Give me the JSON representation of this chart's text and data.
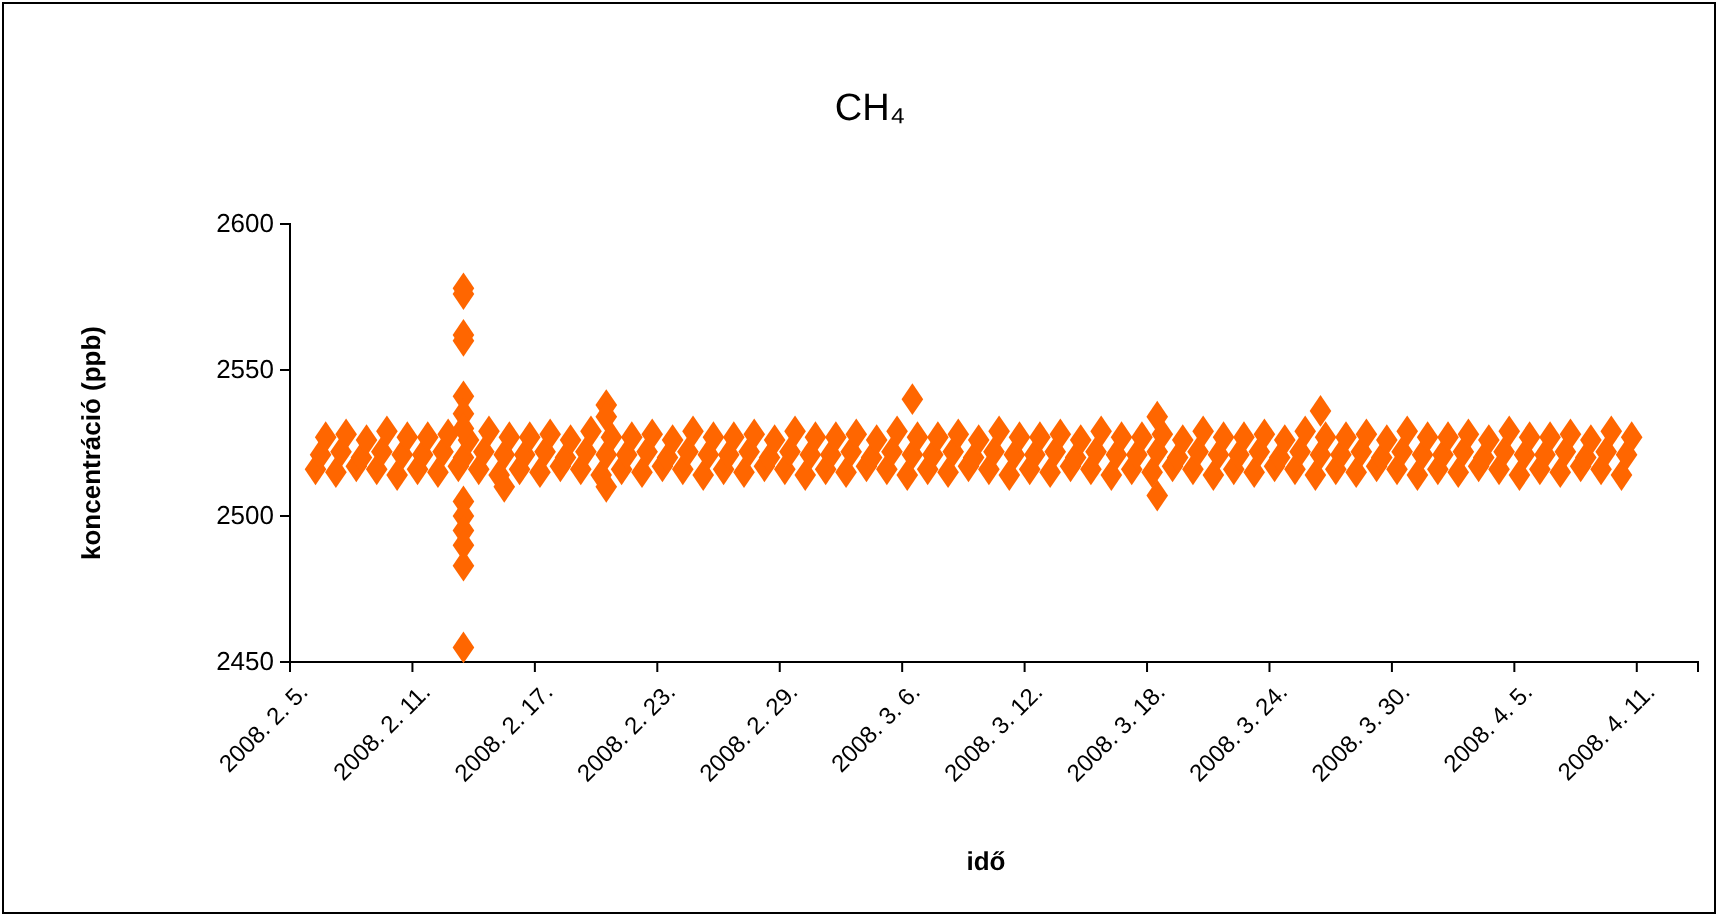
{
  "chart_data": {
    "type": "scatter",
    "title": "CH₄",
    "xlabel": "idő",
    "ylabel": "koncentráció (ppb)",
    "marker": "diamond",
    "xlim": [
      "2008-02-05",
      "2008-04-14"
    ],
    "xticks": [
      {
        "value": "2008-02-05",
        "label": "2008. 2. 5."
      },
      {
        "value": "2008-02-11",
        "label": "2008. 2. 11."
      },
      {
        "value": "2008-02-17",
        "label": "2008. 2. 17."
      },
      {
        "value": "2008-02-23",
        "label": "2008. 2. 23."
      },
      {
        "value": "2008-02-29",
        "label": "2008. 2. 29."
      },
      {
        "value": "2008-03-06",
        "label": "2008. 3. 6."
      },
      {
        "value": "2008-03-12",
        "label": "2008. 3. 12."
      },
      {
        "value": "2008-03-18",
        "label": "2008. 3. 18."
      },
      {
        "value": "2008-03-24",
        "label": "2008. 3. 24."
      },
      {
        "value": "2008-03-30",
        "label": "2008. 3. 30."
      },
      {
        "value": "2008-04-05",
        "label": "2008. 4. 5."
      },
      {
        "value": "2008-04-11",
        "label": "2008. 4. 11."
      }
    ],
    "ylim": [
      2450,
      2600
    ],
    "yticks": [
      2450,
      2500,
      2550,
      2600
    ],
    "series": [
      {
        "color": "#ff6600",
        "x": [
          "2008-02-06T06:00",
          "2008-02-06T12:00",
          "2008-02-06T18:00",
          "2008-02-07T06:00",
          "2008-02-07T12:00",
          "2008-02-07T18:00",
          "2008-02-08T06:00",
          "2008-02-08T12:00",
          "2008-02-08T18:00",
          "2008-02-09T06:00",
          "2008-02-09T12:00",
          "2008-02-09T18:00",
          "2008-02-10T06:00",
          "2008-02-10T12:00",
          "2008-02-10T18:00",
          "2008-02-11T06:00",
          "2008-02-11T12:00",
          "2008-02-11T18:00",
          "2008-02-12T06:00",
          "2008-02-12T12:00",
          "2008-02-12T18:00",
          "2008-02-13T06:00",
          "2008-02-13T12:00",
          "2008-02-13T18:00",
          "2008-02-14T06:00",
          "2008-02-14T12:00",
          "2008-02-14T18:00",
          "2008-02-15T06:00",
          "2008-02-15T12:00",
          "2008-02-15T18:00",
          "2008-02-16T06:00",
          "2008-02-16T12:00",
          "2008-02-16T18:00",
          "2008-02-17T06:00",
          "2008-02-17T12:00",
          "2008-02-17T18:00",
          "2008-02-18T06:00",
          "2008-02-18T12:00",
          "2008-02-18T18:00",
          "2008-02-19T06:00",
          "2008-02-19T12:00",
          "2008-02-19T18:00",
          "2008-02-20T06:00",
          "2008-02-20T12:00",
          "2008-02-20T18:00",
          "2008-02-21T06:00",
          "2008-02-21T12:00",
          "2008-02-21T18:00",
          "2008-02-22T06:00",
          "2008-02-22T12:00",
          "2008-02-22T18:00",
          "2008-02-23T06:00",
          "2008-02-23T12:00",
          "2008-02-23T18:00",
          "2008-02-24T06:00",
          "2008-02-24T12:00",
          "2008-02-24T18:00",
          "2008-02-25T06:00",
          "2008-02-25T12:00",
          "2008-02-25T18:00",
          "2008-02-26T06:00",
          "2008-02-26T12:00",
          "2008-02-26T18:00",
          "2008-02-27T06:00",
          "2008-02-27T12:00",
          "2008-02-27T18:00",
          "2008-02-28T06:00",
          "2008-02-28T12:00",
          "2008-02-28T18:00",
          "2008-02-29T06:00",
          "2008-02-29T12:00",
          "2008-02-29T18:00",
          "2008-03-01T06:00",
          "2008-03-01T12:00",
          "2008-03-01T18:00",
          "2008-03-02T06:00",
          "2008-03-02T12:00",
          "2008-03-02T18:00",
          "2008-03-03T06:00",
          "2008-03-03T12:00",
          "2008-03-03T18:00",
          "2008-03-04T06:00",
          "2008-03-04T12:00",
          "2008-03-04T18:00",
          "2008-03-05T06:00",
          "2008-03-05T12:00",
          "2008-03-05T18:00",
          "2008-03-06T06:00",
          "2008-03-06T12:00",
          "2008-03-06T18:00",
          "2008-03-07T06:00",
          "2008-03-07T12:00",
          "2008-03-07T18:00",
          "2008-03-08T06:00",
          "2008-03-08T12:00",
          "2008-03-08T18:00",
          "2008-03-09T06:00",
          "2008-03-09T12:00",
          "2008-03-09T18:00",
          "2008-03-10T06:00",
          "2008-03-10T12:00",
          "2008-03-10T18:00",
          "2008-03-11T06:00",
          "2008-03-11T12:00",
          "2008-03-11T18:00",
          "2008-03-12T06:00",
          "2008-03-12T12:00",
          "2008-03-12T18:00",
          "2008-03-13T06:00",
          "2008-03-13T12:00",
          "2008-03-13T18:00",
          "2008-03-14T06:00",
          "2008-03-14T12:00",
          "2008-03-14T18:00",
          "2008-03-15T06:00",
          "2008-03-15T12:00",
          "2008-03-15T18:00",
          "2008-03-16T06:00",
          "2008-03-16T12:00",
          "2008-03-16T18:00",
          "2008-03-17T06:00",
          "2008-03-17T12:00",
          "2008-03-17T18:00",
          "2008-03-18T06:00",
          "2008-03-18T12:00",
          "2008-03-18T18:00",
          "2008-03-19T06:00",
          "2008-03-19T12:00",
          "2008-03-19T18:00",
          "2008-03-20T06:00",
          "2008-03-20T12:00",
          "2008-03-20T18:00",
          "2008-03-21T06:00",
          "2008-03-21T12:00",
          "2008-03-21T18:00",
          "2008-03-22T06:00",
          "2008-03-22T12:00",
          "2008-03-22T18:00",
          "2008-03-23T06:00",
          "2008-03-23T12:00",
          "2008-03-23T18:00",
          "2008-03-24T06:00",
          "2008-03-24T12:00",
          "2008-03-24T18:00",
          "2008-03-25T06:00",
          "2008-03-25T12:00",
          "2008-03-25T18:00",
          "2008-03-26T06:00",
          "2008-03-26T12:00",
          "2008-03-26T18:00",
          "2008-03-27T06:00",
          "2008-03-27T12:00",
          "2008-03-27T18:00",
          "2008-03-28T06:00",
          "2008-03-28T12:00",
          "2008-03-28T18:00",
          "2008-03-29T06:00",
          "2008-03-29T12:00",
          "2008-03-29T18:00",
          "2008-03-30T06:00",
          "2008-03-30T12:00",
          "2008-03-30T18:00",
          "2008-03-31T06:00",
          "2008-03-31T12:00",
          "2008-03-31T18:00",
          "2008-04-01T06:00",
          "2008-04-01T12:00",
          "2008-04-01T18:00",
          "2008-04-02T06:00",
          "2008-04-02T12:00",
          "2008-04-02T18:00",
          "2008-04-03T06:00",
          "2008-04-03T12:00",
          "2008-04-03T18:00",
          "2008-04-04T06:00",
          "2008-04-04T12:00",
          "2008-04-04T18:00",
          "2008-04-05T06:00",
          "2008-04-05T12:00",
          "2008-04-05T18:00",
          "2008-04-06T06:00",
          "2008-04-06T12:00",
          "2008-04-06T18:00",
          "2008-04-07T06:00",
          "2008-04-07T12:00",
          "2008-04-07T18:00",
          "2008-04-08T06:00",
          "2008-04-08T12:00",
          "2008-04-08T18:00",
          "2008-04-09T06:00",
          "2008-04-09T12:00",
          "2008-04-09T18:00",
          "2008-04-10T06:00",
          "2008-04-10T12:00",
          "2008-04-10T18:00",
          "2008-02-13T12:00",
          "2008-02-13T12:00",
          "2008-02-13T12:00",
          "2008-02-13T12:00",
          "2008-02-13T12:00",
          "2008-02-13T12:00",
          "2008-02-13T12:00",
          "2008-02-13T12:00",
          "2008-02-13T12:00",
          "2008-02-13T12:00",
          "2008-02-13T12:00",
          "2008-02-13T12:00",
          "2008-02-13T12:00",
          "2008-02-15T12:00",
          "2008-02-20T12:00",
          "2008-02-20T12:00",
          "2008-02-20T12:00",
          "2008-03-06T12:00",
          "2008-03-18T12:00",
          "2008-03-18T12:00",
          "2008-03-26T12:00"
        ],
        "values": [
          2516,
          2521,
          2527,
          2515,
          2522,
          2528,
          2517,
          2520,
          2526,
          2516,
          2522,
          2529,
          2514,
          2521,
          2527,
          2516,
          2521,
          2527,
          2515,
          2522,
          2528,
          2517,
          2520,
          2526,
          2516,
          2522,
          2529,
          2514,
          2521,
          2527,
          2516,
          2521,
          2527,
          2515,
          2522,
          2528,
          2517,
          2520,
          2526,
          2516,
          2522,
          2529,
          2514,
          2521,
          2527,
          2516,
          2521,
          2527,
          2515,
          2522,
          2528,
          2517,
          2520,
          2526,
          2516,
          2522,
          2529,
          2514,
          2521,
          2527,
          2516,
          2521,
          2527,
          2515,
          2522,
          2528,
          2517,
          2520,
          2526,
          2516,
          2522,
          2529,
          2514,
          2521,
          2527,
          2516,
          2521,
          2527,
          2515,
          2522,
          2528,
          2517,
          2520,
          2526,
          2516,
          2522,
          2529,
          2514,
          2521,
          2527,
          2516,
          2521,
          2527,
          2515,
          2522,
          2528,
          2517,
          2520,
          2526,
          2516,
          2522,
          2529,
          2514,
          2521,
          2527,
          2516,
          2521,
          2527,
          2515,
          2522,
          2528,
          2517,
          2520,
          2526,
          2516,
          2522,
          2529,
          2514,
          2521,
          2527,
          2516,
          2521,
          2527,
          2515,
          2522,
          2528,
          2517,
          2520,
          2526,
          2516,
          2522,
          2529,
          2514,
          2521,
          2527,
          2516,
          2521,
          2527,
          2515,
          2522,
          2528,
          2517,
          2520,
          2526,
          2516,
          2522,
          2529,
          2514,
          2521,
          2527,
          2516,
          2521,
          2527,
          2515,
          2522,
          2528,
          2517,
          2520,
          2526,
          2516,
          2522,
          2529,
          2514,
          2521,
          2527,
          2516,
          2521,
          2527,
          2515,
          2522,
          2528,
          2517,
          2520,
          2526,
          2516,
          2522,
          2529,
          2514,
          2521,
          2527,
          2516,
          2521,
          2527,
          2515,
          2522,
          2528,
          2517,
          2520,
          2526,
          2516,
          2522,
          2529,
          2514,
          2521,
          2527,
          2578,
          2576,
          2562,
          2560,
          2541,
          2535,
          2530,
          2505,
          2500,
          2495,
          2490,
          2483,
          2455,
          2510,
          2538,
          2534,
          2510,
          2540,
          2534,
          2507,
          2536
        ]
      }
    ]
  }
}
